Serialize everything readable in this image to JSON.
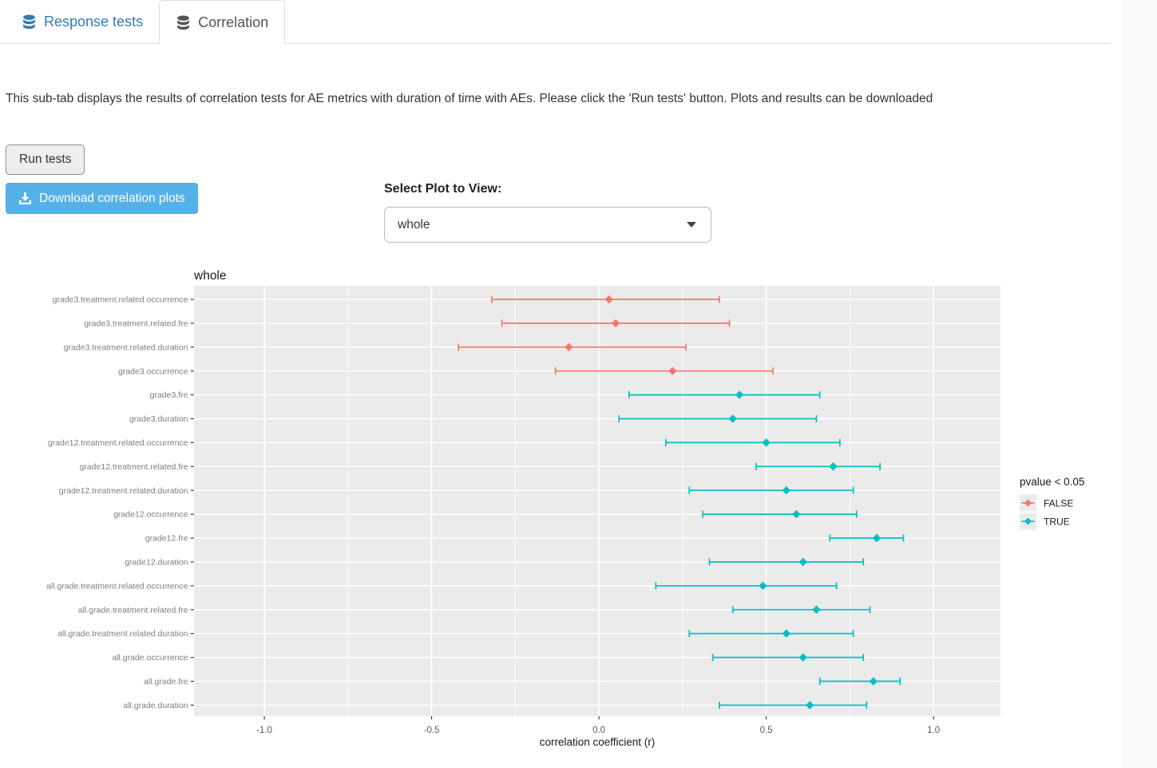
{
  "page": {
    "background": "#fafafa",
    "content_background": "#ffffff"
  },
  "tabs": [
    {
      "label": "Response tests",
      "icon": "database-icon",
      "active": false
    },
    {
      "label": "Correlation",
      "icon": "database-icon",
      "active": true
    }
  ],
  "intro": {
    "text": "This sub-tab displays the results of correlation tests for AE metrics with duration of time with AEs. Please click the 'Run tests' button. Plots and results can be downloaded"
  },
  "controls": {
    "run_button_label": "Run tests",
    "download_button_label": "Download correlation plots",
    "download_icon": "download-icon",
    "select_label": "Select Plot to View:",
    "select_value": "whole",
    "select_caret_icon": "caret-down-icon"
  },
  "colors": {
    "download_button": "#55b2e8",
    "tab_link": "#337ab7",
    "active_tab_text": "#555555",
    "significant_false": "#F8766D",
    "significant_true": "#00BFC4"
  },
  "chart_data": {
    "type": "scatter",
    "subtype": "forest-errorbar",
    "title": "whole",
    "xlabel": "correlation coefficient (r)",
    "xlim": [
      -1.21,
      1.2
    ],
    "x_ticks": [
      -1.0,
      -0.5,
      0.0,
      0.5,
      1.0
    ],
    "x_tick_labels": [
      "-1.0",
      "-0.5",
      "0.0",
      "0.5",
      "1.0"
    ],
    "x_minor_step": 0.25,
    "grid": true,
    "panel_bg": "#EBEBEB",
    "grid_color": "#FFFFFF",
    "legend": {
      "title": "pvalue < 0.05",
      "position": "right",
      "key_bg": "#EBEBEB",
      "entries": [
        {
          "label": "FALSE",
          "color": "#F8766D"
        },
        {
          "label": "TRUE",
          "color": "#00BFC4"
        }
      ]
    },
    "rows": [
      {
        "label": "grade3.treatment.related.occurrence",
        "estimate": 0.03,
        "ci_low": -0.32,
        "ci_high": 0.36,
        "pvalue_lt_005": false
      },
      {
        "label": "grade3.treatment.related.fre",
        "estimate": 0.05,
        "ci_low": -0.29,
        "ci_high": 0.39,
        "pvalue_lt_005": false
      },
      {
        "label": "grade3.treatment.related.duration",
        "estimate": -0.09,
        "ci_low": -0.42,
        "ci_high": 0.26,
        "pvalue_lt_005": false
      },
      {
        "label": "grade3.occurrence",
        "estimate": 0.22,
        "ci_low": -0.13,
        "ci_high": 0.52,
        "pvalue_lt_005": false
      },
      {
        "label": "grade3.fre",
        "estimate": 0.42,
        "ci_low": 0.09,
        "ci_high": 0.66,
        "pvalue_lt_005": true
      },
      {
        "label": "grade3.duration",
        "estimate": 0.4,
        "ci_low": 0.06,
        "ci_high": 0.65,
        "pvalue_lt_005": true
      },
      {
        "label": "grade12.treatment.related.occurrence",
        "estimate": 0.5,
        "ci_low": 0.2,
        "ci_high": 0.72,
        "pvalue_lt_005": true
      },
      {
        "label": "grade12.treatment.related.fre",
        "estimate": 0.7,
        "ci_low": 0.47,
        "ci_high": 0.84,
        "pvalue_lt_005": true
      },
      {
        "label": "grade12.treatment.related.duration",
        "estimate": 0.56,
        "ci_low": 0.27,
        "ci_high": 0.76,
        "pvalue_lt_005": true
      },
      {
        "label": "grade12.occurrence",
        "estimate": 0.59,
        "ci_low": 0.31,
        "ci_high": 0.77,
        "pvalue_lt_005": true
      },
      {
        "label": "grade12.fre",
        "estimate": 0.83,
        "ci_low": 0.69,
        "ci_high": 0.91,
        "pvalue_lt_005": true
      },
      {
        "label": "grade12.duration",
        "estimate": 0.61,
        "ci_low": 0.33,
        "ci_high": 0.79,
        "pvalue_lt_005": true
      },
      {
        "label": "all.grade.treatment.related.occurrence",
        "estimate": 0.49,
        "ci_low": 0.17,
        "ci_high": 0.71,
        "pvalue_lt_005": true
      },
      {
        "label": "all.grade.treatment.related.fre",
        "estimate": 0.65,
        "ci_low": 0.4,
        "ci_high": 0.81,
        "pvalue_lt_005": true
      },
      {
        "label": "all.grade.treatment.related.duration",
        "estimate": 0.56,
        "ci_low": 0.27,
        "ci_high": 0.76,
        "pvalue_lt_005": true
      },
      {
        "label": "all.grade.occurrence",
        "estimate": 0.61,
        "ci_low": 0.34,
        "ci_high": 0.79,
        "pvalue_lt_005": true
      },
      {
        "label": "all.grade.fre",
        "estimate": 0.82,
        "ci_low": 0.66,
        "ci_high": 0.9,
        "pvalue_lt_005": true
      },
      {
        "label": "all.grade.duration",
        "estimate": 0.63,
        "ci_low": 0.36,
        "ci_high": 0.8,
        "pvalue_lt_005": true
      }
    ]
  }
}
